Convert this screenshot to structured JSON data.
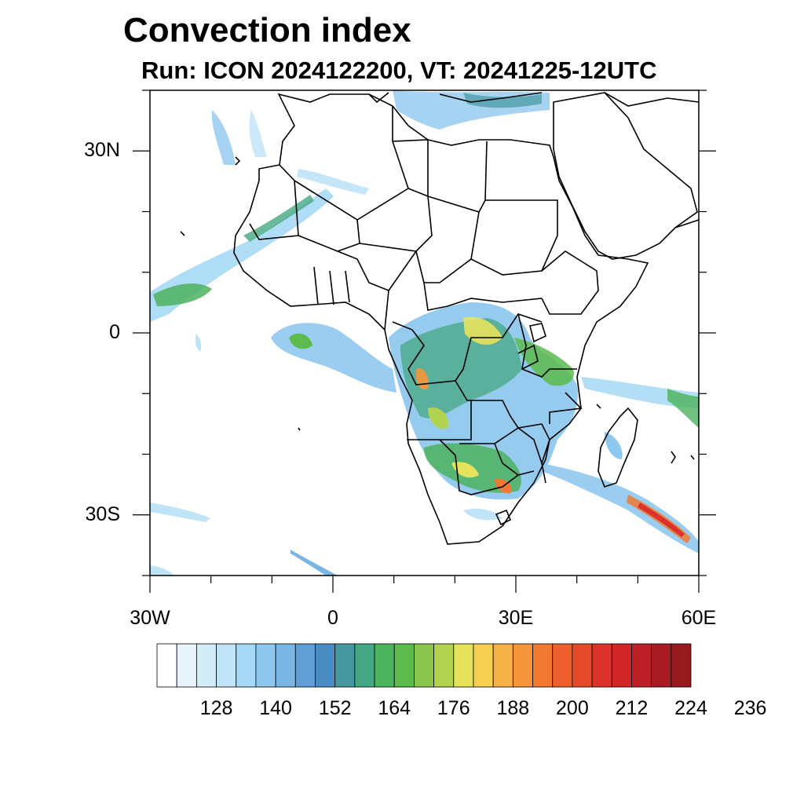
{
  "title": "Convection index",
  "subtitle": "Run: ICON 2024122200,  VT: 20241225-12UTC",
  "map": {
    "projection": "lat-lon",
    "lon_range": [
      -30,
      60
    ],
    "lat_range": [
      -40,
      40
    ],
    "lat_labels": [
      {
        "value": 30,
        "text": "30N"
      },
      {
        "value": 0,
        "text": "0"
      },
      {
        "value": -30,
        "text": "30S"
      }
    ],
    "lon_labels": [
      {
        "value": -30,
        "text": "30W"
      },
      {
        "value": 0,
        "text": "0"
      },
      {
        "value": 30,
        "text": "30E"
      },
      {
        "value": 60,
        "text": "60E"
      }
    ],
    "coastlines": "country borders in black",
    "field": "Convection index"
  },
  "colorbar": {
    "colors": [
      "#ffffff",
      "#e8f4fb",
      "#d3ecf8",
      "#bfe3f7",
      "#a6d9f5",
      "#8fc8ee",
      "#7ab6e4",
      "#5f9fd6",
      "#4a8cc4",
      "#4597a0",
      "#46a882",
      "#4cb35e",
      "#5cbb4c",
      "#8ac54e",
      "#b2d352",
      "#e6e35b",
      "#f5cf52",
      "#f7b247",
      "#f5963c",
      "#f07a33",
      "#eb602c",
      "#e44b2a",
      "#dc3229",
      "#d12628",
      "#bd1f27",
      "#a81b24",
      "#951b1f"
    ],
    "tick_labels": [
      "128",
      "140",
      "152",
      "164",
      "176",
      "188",
      "200",
      "212",
      "224",
      "236"
    ]
  }
}
